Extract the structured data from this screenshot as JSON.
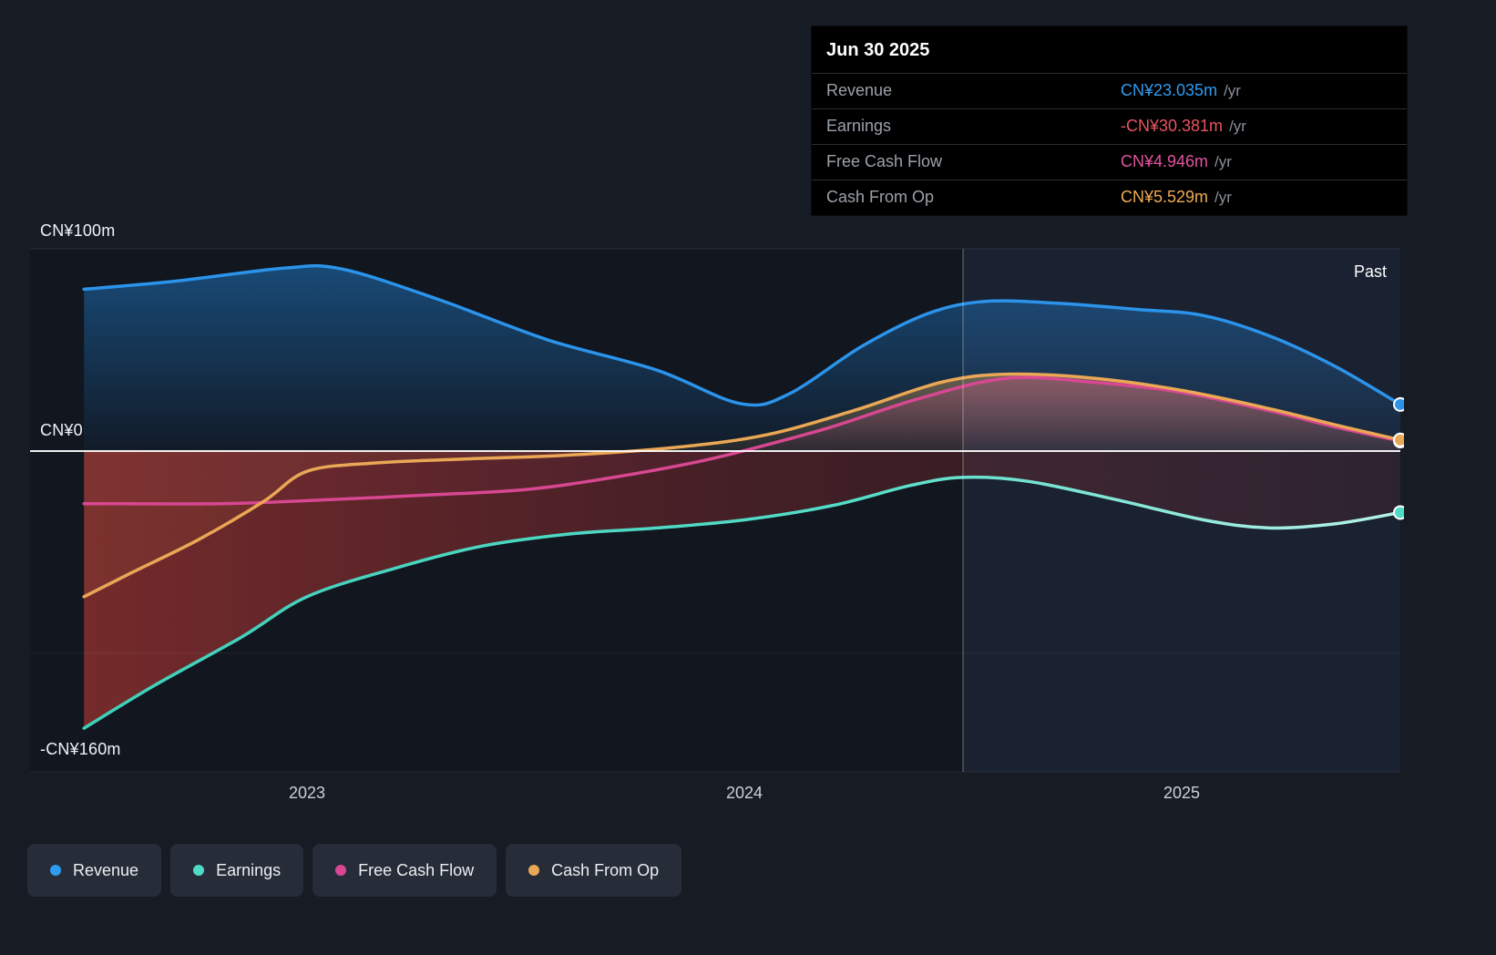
{
  "tooltip": {
    "date": "Jun 30 2025",
    "rows": [
      {
        "label": "Revenue",
        "value": "CN¥23.035m",
        "suffix": "/yr",
        "color": "#2f9bf0"
      },
      {
        "label": "Earnings",
        "value": "-CN¥30.381m",
        "suffix": "/yr",
        "color": "#e9545e"
      },
      {
        "label": "Free Cash Flow",
        "value": "CN¥4.946m",
        "suffix": "/yr",
        "color": "#e0549f"
      },
      {
        "label": "Cash From Op",
        "value": "CN¥5.529m",
        "suffix": "/yr",
        "color": "#efab55"
      }
    ]
  },
  "axis": {
    "y_top_label": "CN¥100m",
    "y_zero_label": "CN¥0",
    "y_bottom_label": "-CN¥160m",
    "x_ticks": [
      "2023",
      "2024",
      "2025"
    ]
  },
  "past_label": "Past",
  "legend": [
    {
      "label": "Revenue",
      "color": "#2f9bf0"
    },
    {
      "label": "Earnings",
      "color": "#4fdcc6"
    },
    {
      "label": "Free Cash Flow",
      "color": "#d84792"
    },
    {
      "label": "Cash From Op",
      "color": "#eaa755"
    }
  ],
  "chart_data": {
    "type": "area",
    "x_axis": {
      "unit": "year",
      "ticks": [
        2023,
        2024,
        2025
      ],
      "range": [
        2022.37,
        2025.5
      ]
    },
    "y_axis": {
      "unit": "CN¥ millions",
      "range": [
        -160,
        100
      ],
      "gridlines": [
        100,
        0,
        -100,
        -160
      ],
      "zero_line": true
    },
    "divider_x": 2024.5,
    "legend_position": "bottom-left",
    "series": [
      {
        "name": "Revenue",
        "color": "#2b93ea",
        "x": [
          2022.49,
          2022.7,
          2022.95,
          2023.08,
          2023.3,
          2023.55,
          2023.8,
          2023.99,
          2024.1,
          2024.27,
          2024.42,
          2024.55,
          2024.72,
          2024.9,
          2025.05,
          2025.2,
          2025.35,
          2025.5
        ],
        "values": [
          80,
          84,
          90.5,
          90,
          75,
          55,
          40,
          23.5,
          28,
          52,
          68,
          74,
          73,
          70,
          67,
          57,
          42,
          23.035
        ]
      },
      {
        "name": "Earnings",
        "color": "#4fdcc6",
        "x": [
          2022.49,
          2022.65,
          2022.85,
          2023.0,
          2023.2,
          2023.4,
          2023.6,
          2023.8,
          2024.0,
          2024.2,
          2024.38,
          2024.5,
          2024.65,
          2024.85,
          2025.05,
          2025.2,
          2025.35,
          2025.5
        ],
        "values": [
          -137,
          -116,
          -92,
          -72,
          -58,
          -47,
          -41,
          -38,
          -34,
          -27,
          -17,
          -13,
          -15,
          -24,
          -34,
          -38,
          -36,
          -30.381
        ]
      },
      {
        "name": "Free Cash Flow",
        "color": "#d84792",
        "x": [
          2022.49,
          2022.8,
          2023.0,
          2023.25,
          2023.5,
          2023.7,
          2023.9,
          2024.05,
          2024.2,
          2024.4,
          2024.6,
          2024.8,
          2025.0,
          2025.2,
          2025.35,
          2025.5
        ],
        "values": [
          -26,
          -26,
          -24.5,
          -22,
          -19,
          -13,
          -5,
          3,
          12,
          26,
          36,
          34,
          29,
          20,
          12,
          4.946
        ]
      },
      {
        "name": "Cash From Op",
        "color": "#eaa755",
        "x": [
          2022.49,
          2022.6,
          2022.75,
          2022.9,
          2023.0,
          2023.15,
          2023.35,
          2023.6,
          2023.85,
          2024.05,
          2024.25,
          2024.45,
          2024.6,
          2024.8,
          2025.0,
          2025.2,
          2025.35,
          2025.5
        ],
        "values": [
          -72,
          -60,
          -44,
          -25,
          -10,
          -6,
          -4,
          -2,
          2,
          8,
          20,
          34,
          38,
          36,
          30,
          21,
          13,
          5.529
        ]
      }
    ]
  }
}
